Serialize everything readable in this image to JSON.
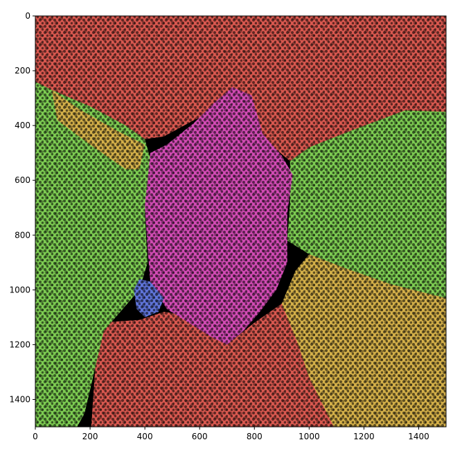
{
  "chart_data": {
    "type": "heatmap",
    "title": "",
    "xlabel": "",
    "ylabel": "",
    "xlim": [
      0,
      1500
    ],
    "ylim": [
      1500,
      0
    ],
    "x_ticks": [
      0,
      200,
      400,
      600,
      800,
      1000,
      1200,
      1400
    ],
    "y_ticks": [
      0,
      200,
      400,
      600,
      800,
      1000,
      1200,
      1400
    ],
    "x_tick_labels": [
      "0",
      "200",
      "400",
      "600",
      "800",
      "1000",
      "1200",
      "1400"
    ],
    "y_tick_labels": [
      "0",
      "200",
      "400",
      "600",
      "800",
      "1000",
      "1200",
      "1400"
    ],
    "grid": false,
    "background_color": "#000000",
    "regions": [
      {
        "color": "#d9584f",
        "polygon": [
          [
            0,
            0
          ],
          [
            1500,
            0
          ],
          [
            1500,
            350
          ],
          [
            1350,
            345
          ],
          [
            1150,
            420
          ],
          [
            1000,
            480
          ],
          [
            930,
            530
          ],
          [
            800,
            420
          ],
          [
            700,
            330
          ],
          [
            580,
            380
          ],
          [
            470,
            440
          ],
          [
            400,
            450
          ],
          [
            330,
            400
          ],
          [
            200,
            330
          ],
          [
            60,
            270
          ],
          [
            0,
            240
          ]
        ]
      },
      {
        "color": "#d9584f",
        "polygon": [
          [
            200,
            1560
          ],
          [
            230,
            1120
          ],
          [
            380,
            1110
          ],
          [
            470,
            1080
          ],
          [
            600,
            1100
          ],
          [
            700,
            1200
          ],
          [
            800,
            1120
          ],
          [
            900,
            1050
          ],
          [
            1000,
            1020
          ],
          [
            960,
            1200
          ],
          [
            1000,
            1320
          ],
          [
            1120,
            1500
          ],
          [
            1100,
            1560
          ]
        ]
      },
      {
        "color": "#7dcc52",
        "polygon": [
          [
            0,
            240
          ],
          [
            60,
            270
          ],
          [
            200,
            330
          ],
          [
            330,
            400
          ],
          [
            400,
            450
          ],
          [
            420,
            520
          ],
          [
            400,
            720
          ],
          [
            410,
            900
          ],
          [
            380,
            1000
          ],
          [
            250,
            1150
          ],
          [
            180,
            1450
          ],
          [
            120,
            1560
          ],
          [
            0,
            1560
          ]
        ]
      },
      {
        "color": "#d4b049",
        "polygon": [
          [
            60,
            270
          ],
          [
            160,
            340
          ],
          [
            300,
            420
          ],
          [
            400,
            470
          ],
          [
            380,
            560
          ],
          [
            330,
            560
          ],
          [
            200,
            470
          ],
          [
            80,
            380
          ]
        ]
      },
      {
        "color": "#7dcc52",
        "polygon": [
          [
            930,
            530
          ],
          [
            1000,
            480
          ],
          [
            1150,
            420
          ],
          [
            1350,
            345
          ],
          [
            1500,
            350
          ],
          [
            1500,
            1030
          ],
          [
            1300,
            980
          ],
          [
            1130,
            920
          ],
          [
            1000,
            870
          ],
          [
            920,
            820
          ],
          [
            930,
            680
          ]
        ]
      },
      {
        "color": "#d4b049",
        "polygon": [
          [
            1000,
            870
          ],
          [
            1130,
            920
          ],
          [
            1300,
            980
          ],
          [
            1500,
            1030
          ],
          [
            1500,
            1560
          ],
          [
            1120,
            1560
          ],
          [
            1000,
            1320
          ],
          [
            960,
            1200
          ],
          [
            900,
            1050
          ],
          [
            950,
            930
          ]
        ]
      },
      {
        "color": "#d24bb4",
        "polygon": [
          [
            420,
            500
          ],
          [
            480,
            470
          ],
          [
            580,
            390
          ],
          [
            650,
            320
          ],
          [
            720,
            260
          ],
          [
            790,
            290
          ],
          [
            830,
            430
          ],
          [
            900,
            510
          ],
          [
            940,
            580
          ],
          [
            920,
            720
          ],
          [
            920,
            900
          ],
          [
            880,
            1000
          ],
          [
            820,
            1080
          ],
          [
            760,
            1150
          ],
          [
            700,
            1200
          ],
          [
            640,
            1170
          ],
          [
            560,
            1120
          ],
          [
            480,
            1070
          ],
          [
            420,
            970
          ],
          [
            410,
            850
          ],
          [
            400,
            690
          ],
          [
            410,
            600
          ]
        ]
      },
      {
        "color": "#6075db",
        "polygon": [
          [
            380,
            960
          ],
          [
            420,
            970
          ],
          [
            470,
            1030
          ],
          [
            450,
            1080
          ],
          [
            400,
            1100
          ],
          [
            370,
            1070
          ],
          [
            360,
            1000
          ]
        ]
      }
    ]
  }
}
